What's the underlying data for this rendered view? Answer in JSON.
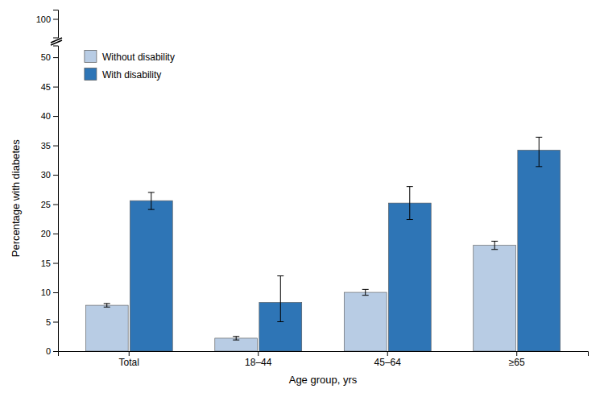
{
  "chart_data": [
    {
      "type": "bar",
      "ylim": [
        96,
        102
      ],
      "yticks": [
        100
      ],
      "tick_labels": "y"
    },
    {
      "type": "bar",
      "xlabel": "Age group, yrs",
      "ylabel": "Percentage with diabetes",
      "categories": [
        "Total",
        "18–44",
        "45–64",
        "≥65"
      ],
      "series": [
        {
          "name": "Without disability",
          "color": "#b8cce4",
          "values": [
            7.8,
            2.2,
            10.0,
            18.0
          ],
          "error_low": [
            0.3,
            0.3,
            0.5,
            0.7
          ],
          "error_high": [
            0.3,
            0.3,
            0.5,
            0.7
          ]
        },
        {
          "name": "With disability",
          "color": "#2e75b6",
          "values": [
            25.6,
            8.3,
            25.2,
            34.2
          ],
          "error_low": [
            1.5,
            3.3,
            2.8,
            2.8
          ],
          "error_high": [
            1.4,
            4.5,
            2.8,
            2.2
          ]
        }
      ],
      "ylim": [
        0,
        52
      ],
      "yticks": [
        0,
        5,
        10,
        15,
        20,
        25,
        30,
        35,
        40,
        45,
        50
      ],
      "legend": "upper left"
    }
  ]
}
